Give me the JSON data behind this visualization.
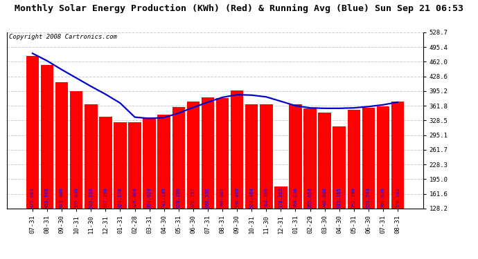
{
  "title": "Monthly Solar Energy Production (KWh) (Red) & Running Avg (Blue) Sun Sep 21 06:53",
  "copyright": "Copyright 2008 Cartronics.com",
  "categories": [
    "07-31",
    "08-31",
    "09-30",
    "10-31",
    "11-30",
    "12-31",
    "01-31",
    "02-28",
    "03-31",
    "04-30",
    "05-31",
    "06-30",
    "07-31",
    "08-31",
    "09-30",
    "10-31",
    "11-30",
    "12-31",
    "01-31",
    "02-29",
    "03-30",
    "04-30",
    "05-31",
    "06-30",
    "07-31",
    "08-31"
  ],
  "bar_values": [
    475.665,
    453.908,
    415.048,
    395.03,
    365.336,
    337.298,
    324.37,
    324.004,
    334.624,
    341.189,
    358.299,
    370.757,
    380.536,
    380.047,
    396.408,
    364.464,
    364.399,
    178.263,
    364.836,
    355.654,
    346.606,
    315.165,
    352.19,
    356.744,
    360.62,
    370.982
  ],
  "running_avg": [
    481.0,
    464.0,
    444.0,
    425.0,
    406.0,
    388.0,
    368.0,
    336.0,
    333.0,
    335.0,
    345.0,
    358.0,
    370.0,
    381.0,
    387.0,
    386.0,
    382.0,
    372.0,
    362.0,
    357.0,
    356.0,
    356.0,
    357.0,
    360.0,
    364.0,
    370.0
  ],
  "bar_color": "#FF0000",
  "line_color": "#0000CC",
  "bg_color": "#FFFFFF",
  "grid_color": "#CCCCCC",
  "yticks": [
    128.2,
    161.6,
    195.0,
    228.3,
    261.7,
    295.1,
    328.5,
    361.8,
    395.2,
    428.6,
    462.0,
    495.4,
    528.7
  ],
  "ymin": 128.2,
  "ymax": 528.7,
  "ybar_base": 0,
  "title_fontsize": 9.5,
  "copyright_fontsize": 6.5,
  "value_fontsize": 5.0,
  "tick_fontsize": 6.5
}
